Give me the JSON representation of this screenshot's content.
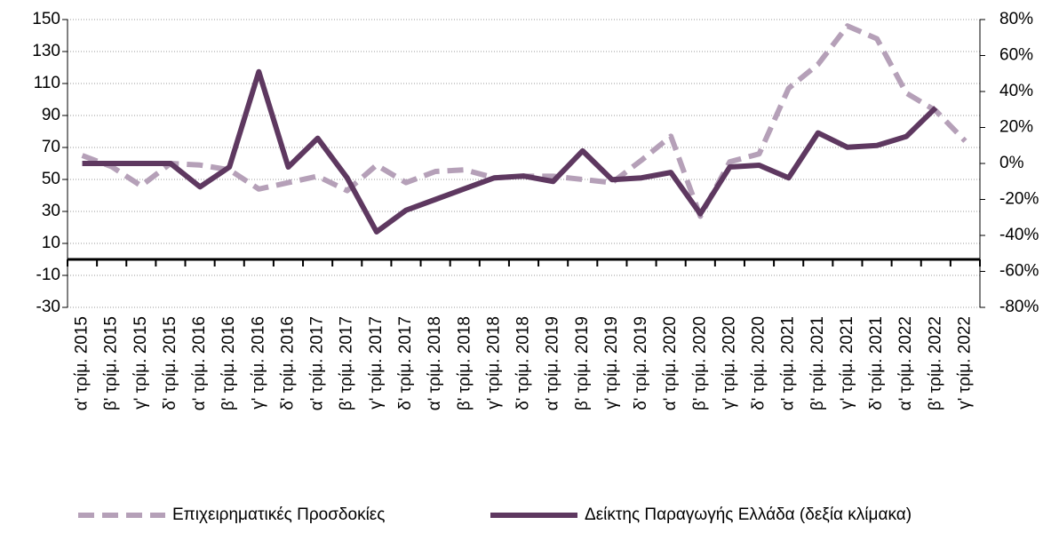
{
  "chart_data": {
    "type": "line",
    "categories": [
      "α' τρίμ. 2015",
      "β' τρίμ. 2015",
      "γ' τρίμ. 2015",
      "δ' τρίμ. 2015",
      "α' τρίμ. 2016",
      "β' τρίμ. 2016",
      "γ' τρίμ. 2016",
      "δ' τρίμ. 2016",
      "α' τρίμ. 2017",
      "β' τρίμ. 2017",
      "γ' τρίμ. 2017",
      "δ' τρίμ. 2017",
      "α' τρίμ. 2018",
      "β' τρίμ. 2018",
      "γ' τρίμ. 2018",
      "δ' τρίμ. 2018",
      "α' τρίμ. 2019",
      "β' τρίμ. 2019",
      "γ' τρίμ. 2019",
      "δ' τρίμ. 2019",
      "α' τρίμ. 2020",
      "β' τρίμ. 2020",
      "γ' τρίμ. 2020",
      "δ' τρίμ. 2020",
      "α' τρίμ. 2021",
      "β' τρίμ. 2021",
      "γ' τρίμ. 2021",
      "δ' τρίμ. 2021",
      "α' τρίμ. 2022",
      "β' τρίμ. 2022",
      "γ' τρίμ. 2022"
    ],
    "series": [
      {
        "name": "Επιχειρηματικές Προσδοκίες",
        "color": "#b5a0b8",
        "dashed": true,
        "values": [
          65,
          58,
          46,
          60,
          59,
          56,
          44,
          48,
          52,
          43,
          59,
          48,
          55,
          56,
          51,
          52,
          52,
          50,
          48,
          62,
          77,
          27,
          61,
          66,
          107,
          122,
          146,
          138,
          104,
          93,
          74
        ]
      },
      {
        "name": "Δείκτης Παραγωγής Ελλάδα (δεξία κλίμακα)",
        "color": "#5e3860",
        "axis": "y2",
        "values": [
          0,
          0,
          0,
          0,
          -13,
          -2,
          51,
          -2,
          14,
          -8,
          -38,
          -26,
          -20,
          -14,
          -8,
          -7,
          -10,
          7,
          -9,
          -8,
          -5,
          -28,
          -2,
          -1,
          -8,
          17,
          9,
          10,
          15,
          31,
          null
        ]
      }
    ],
    "ylim": [
      -30,
      150
    ],
    "yticks": [
      -30,
      -10,
      10,
      30,
      50,
      70,
      90,
      110,
      130,
      150
    ],
    "y2lim": [
      -80,
      80
    ],
    "y2ticks": [
      {
        "value": -80,
        "label": "-80%"
      },
      {
        "value": -60,
        "label": "-60%"
      },
      {
        "value": -40,
        "label": "-40%"
      },
      {
        "value": -20,
        "label": "-20%"
      },
      {
        "value": 0,
        "label": "0%"
      },
      {
        "value": 20,
        "label": "20%"
      },
      {
        "value": 40,
        "label": "40%"
      },
      {
        "value": 60,
        "label": "60%"
      },
      {
        "value": 80,
        "label": "80%"
      }
    ],
    "grid": true,
    "legend": "bottom"
  }
}
